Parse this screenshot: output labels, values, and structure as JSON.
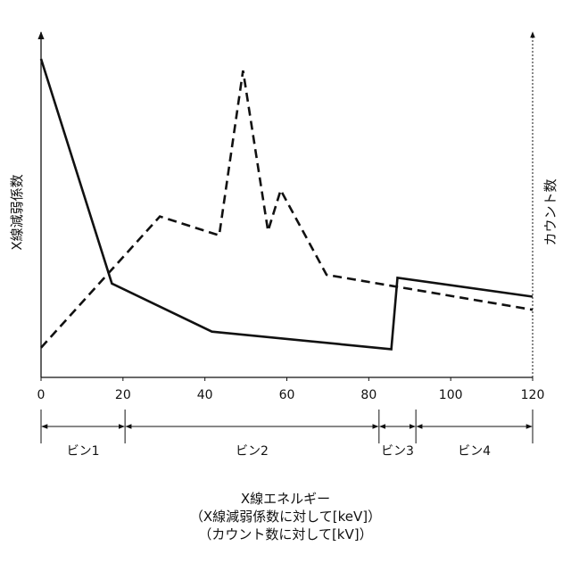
{
  "chart_data": {
    "type": "line",
    "x_range": [
      0,
      120
    ],
    "xticks": [
      0,
      20,
      40,
      60,
      80,
      100,
      120
    ],
    "x_tick_labels": [
      "0",
      "20",
      "40",
      "60",
      "80",
      "100",
      "120"
    ],
    "grid": false,
    "series": [
      {
        "name": "X線減弱係数",
        "axis": "left",
        "line_style": "solid",
        "points": [
          [
            0,
            100
          ],
          [
            17.3,
            23
          ],
          [
            41.7,
            6.5
          ],
          [
            85.5,
            0.5
          ],
          [
            87,
            25
          ],
          [
            120,
            18.5
          ]
        ]
      },
      {
        "name": "カウント数",
        "axis": "right",
        "line_style": "dashed",
        "points": [
          [
            0,
            1
          ],
          [
            29,
            46
          ],
          [
            43.5,
            39.5
          ],
          [
            49.3,
            96
          ],
          [
            55.4,
            41
          ],
          [
            58.5,
            55
          ],
          [
            69.7,
            26
          ],
          [
            120,
            14
          ]
        ]
      }
    ],
    "ylabel_left": "X線減弱係数",
    "ylabel_right": "カウント数",
    "xlabel_lines": [
      "X線エネルギー",
      "（X線減弱係数に対して[keV]）",
      "（カウント数に対して[kV]）"
    ],
    "bins": [
      {
        "label": "ビン1",
        "from": 0,
        "to": 20.5
      },
      {
        "label": "ビン2",
        "from": 20.5,
        "to": 82.5
      },
      {
        "label": "ビン3",
        "from": 82.5,
        "to": 91.5
      },
      {
        "label": "ビン4",
        "from": 91.5,
        "to": 120
      }
    ]
  }
}
